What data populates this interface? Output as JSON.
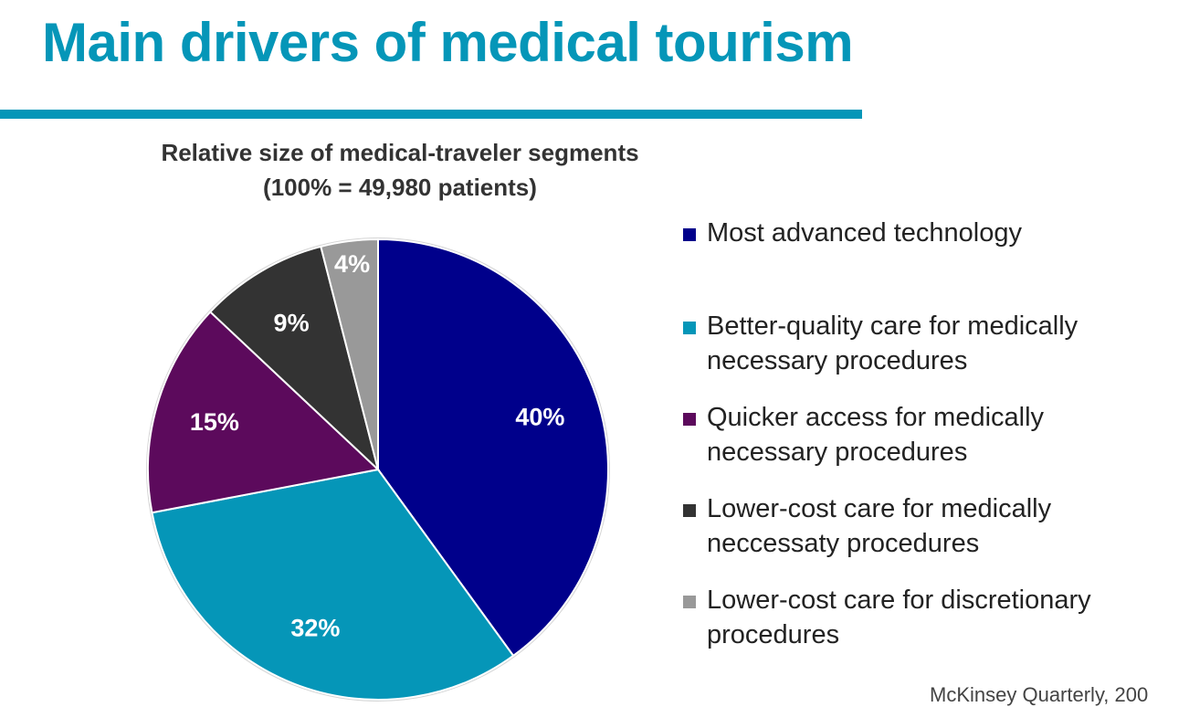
{
  "page": {
    "title": "Main drivers of medical tourism",
    "source": "McKinsey Quarterly, 200"
  },
  "chart_data": {
    "type": "pie",
    "title_lines": [
      "Relative size of medical-traveler segments",
      "(100% = 49,980 patients)"
    ],
    "legend_position": "right",
    "slices": [
      {
        "name": "Most advanced technology",
        "value": 40,
        "label": "40%",
        "color": "#00008b",
        "label_color": "#ffffff"
      },
      {
        "name": "Better-quality care for medically necessary procedures",
        "value": 32,
        "label": "32%",
        "color": "#0596b8",
        "label_color": "#ffffff"
      },
      {
        "name": "Quicker access for medically necessary procedures",
        "value": 15,
        "label": "15%",
        "color": "#5c0a5c",
        "label_color": "#ffffff"
      },
      {
        "name": "Lower-cost care for medically neccessaty procedures",
        "value": 9,
        "label": "9%",
        "color": "#333333",
        "label_color": "#ffffff"
      },
      {
        "name": "Lower-cost care for discretionary procedures",
        "value": 4,
        "label": "4%",
        "color": "#999999",
        "label_color": "#ffffff"
      }
    ]
  }
}
